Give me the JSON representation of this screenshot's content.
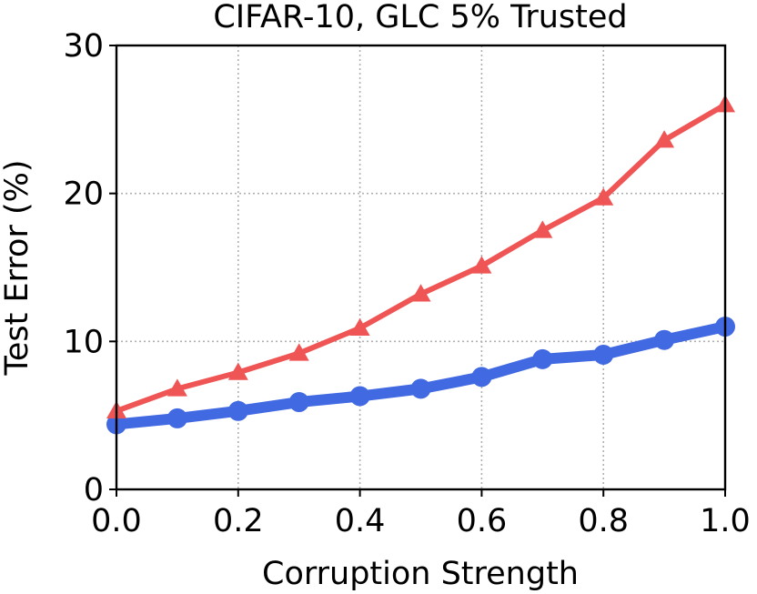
{
  "chart_data": {
    "type": "line",
    "title": "CIFAR-10, GLC 5% Trusted",
    "xlabel": "Corruption Strength",
    "ylabel": "Test Error (%)",
    "xlim": [
      0.0,
      1.0
    ],
    "ylim": [
      0,
      30
    ],
    "xticks": [
      0.0,
      0.2,
      0.4,
      0.6,
      0.8,
      1.0
    ],
    "xtick_labels": [
      "0.0",
      "0.2",
      "0.4",
      "0.6",
      "0.8",
      "1.0"
    ],
    "yticks": [
      0,
      10,
      20,
      30
    ],
    "ytick_labels": [
      "0",
      "10",
      "20",
      "30"
    ],
    "grid": true,
    "x": [
      0.0,
      0.1,
      0.2,
      0.3,
      0.4,
      0.5,
      0.6,
      0.7,
      0.8,
      0.9,
      1.0
    ],
    "series": [
      {
        "name": "triangle-series",
        "color": "#f05555",
        "marker": "triangle",
        "values": [
          5.3,
          6.8,
          7.9,
          9.2,
          10.9,
          13.2,
          15.1,
          17.5,
          19.7,
          23.6,
          26.0
        ]
      },
      {
        "name": "circle-series",
        "color": "#4169e1",
        "marker": "circle",
        "values": [
          4.4,
          4.8,
          5.3,
          5.9,
          6.3,
          6.8,
          7.6,
          8.8,
          9.1,
          10.1,
          11.0
        ]
      }
    ]
  }
}
